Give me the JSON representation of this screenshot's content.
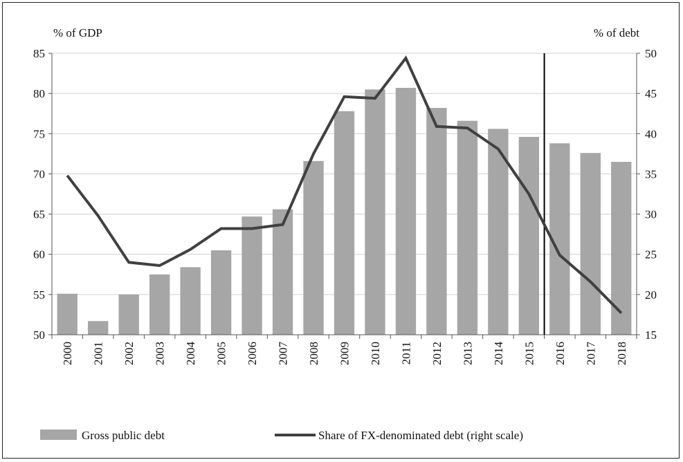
{
  "chart_data": {
    "type": "bar",
    "left_axis_label": "% of GDP",
    "right_axis_label": "% of debt",
    "categories": [
      "2000",
      "2001",
      "2002",
      "2003",
      "2004",
      "2005",
      "2006",
      "2007",
      "2008",
      "2009",
      "2010",
      "2011",
      "2012",
      "2013",
      "2014",
      "2015",
      "2016",
      "2017",
      "2018"
    ],
    "series": [
      {
        "name": "Gross public debt",
        "type": "bar",
        "axis": "left",
        "color": "#a6a6a6",
        "values": [
          55.1,
          51.7,
          55.0,
          57.5,
          58.4,
          60.5,
          64.7,
          65.6,
          71.6,
          77.8,
          80.5,
          80.7,
          78.2,
          76.6,
          75.6,
          74.6,
          73.8,
          72.6,
          71.5
        ]
      },
      {
        "name": "Share of FX-denominated debt (right scale)",
        "type": "line",
        "axis": "right",
        "color": "#404040",
        "values": [
          34.8,
          29.8,
          24.0,
          23.6,
          25.6,
          28.2,
          28.2,
          28.7,
          37.5,
          44.6,
          44.4,
          49.4,
          40.9,
          40.7,
          38.1,
          32.5,
          24.9,
          21.6,
          17.7
        ]
      }
    ],
    "ylim_left": [
      50,
      85
    ],
    "yticks_left": [
      50,
      55,
      60,
      65,
      70,
      75,
      80,
      85
    ],
    "ylim_right": [
      15,
      50
    ],
    "yticks_right": [
      15,
      20,
      25,
      30,
      35,
      40,
      45,
      50
    ],
    "vertical_marker_between": [
      "2015",
      "2016"
    ],
    "grid": "horizontal",
    "legend_position": "bottom"
  }
}
